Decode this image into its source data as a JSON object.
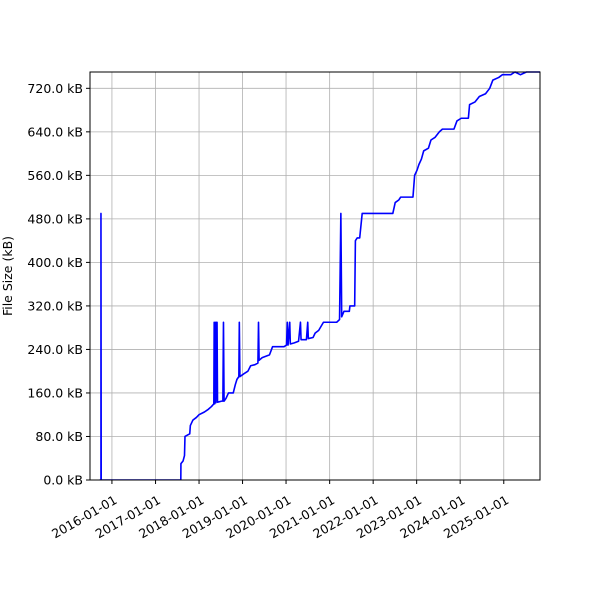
{
  "chart_data": {
    "type": "line",
    "title": "",
    "xlabel": "",
    "ylabel": "File Size (kB)",
    "grid": true,
    "legend": "none",
    "x_tick_labels": [
      "2016-01-01",
      "2017-01-01",
      "2018-01-01",
      "2019-01-01",
      "2020-01-01",
      "2021-01-01",
      "2022-01-01",
      "2023-01-01",
      "2024-01-01",
      "2025-01-01"
    ],
    "y_tick_values": [
      0,
      80,
      160,
      240,
      320,
      400,
      480,
      560,
      640,
      720
    ],
    "y_tick_labels": [
      "0.0 kB",
      "80.0 kB",
      "160.0 kB",
      "240.0 kB",
      "320.0 kB",
      "400.0 kB",
      "480.0 kB",
      "560.0 kB",
      "640.0 kB",
      "720.0 kB"
    ],
    "xlim": [
      "2015-07-01",
      "2025-11-01"
    ],
    "ylim": [
      0,
      750
    ],
    "series": [
      {
        "color": "#0000ff",
        "points": [
          [
            "2015-09-20",
            0
          ],
          [
            "2015-10-01",
            0
          ],
          [
            "2015-10-01",
            490
          ],
          [
            "2015-10-03",
            0
          ],
          [
            "2016-06-01",
            0
          ],
          [
            "2017-06-01",
            0
          ],
          [
            "2017-08-01",
            0
          ],
          [
            "2017-08-02",
            30
          ],
          [
            "2017-08-20",
            35
          ],
          [
            "2017-09-01",
            45
          ],
          [
            "2017-09-05",
            80
          ],
          [
            "2017-10-15",
            85
          ],
          [
            "2017-10-20",
            100
          ],
          [
            "2017-11-10",
            110
          ],
          [
            "2017-12-10",
            115
          ],
          [
            "2018-01-01",
            120
          ],
          [
            "2018-02-15",
            125
          ],
          [
            "2018-03-20",
            130
          ],
          [
            "2018-04-15",
            135
          ],
          [
            "2018-05-05",
            140
          ],
          [
            "2018-05-08",
            290
          ],
          [
            "2018-05-12",
            140
          ],
          [
            "2018-05-18",
            290
          ],
          [
            "2018-05-22",
            142
          ],
          [
            "2018-05-28",
            290
          ],
          [
            "2018-06-01",
            290
          ],
          [
            "2018-06-05",
            143
          ],
          [
            "2018-07-10",
            145
          ],
          [
            "2018-07-20",
            145
          ],
          [
            "2018-07-25",
            290
          ],
          [
            "2018-07-30",
            145
          ],
          [
            "2018-08-15",
            150
          ],
          [
            "2018-09-05",
            160
          ],
          [
            "2018-10-15",
            160
          ],
          [
            "2018-11-01",
            175
          ],
          [
            "2018-11-15",
            185
          ],
          [
            "2018-12-01",
            190
          ],
          [
            "2018-12-05",
            290
          ],
          [
            "2018-12-10",
            190
          ],
          [
            "2019-01-10",
            195
          ],
          [
            "2019-02-15",
            200
          ],
          [
            "2019-03-10",
            210
          ],
          [
            "2019-04-15",
            212
          ],
          [
            "2019-05-10",
            215
          ],
          [
            "2019-05-15",
            290
          ],
          [
            "2019-05-20",
            220
          ],
          [
            "2019-06-15",
            225
          ],
          [
            "2019-08-15",
            230
          ],
          [
            "2019-09-10",
            245
          ],
          [
            "2019-12-15",
            245
          ],
          [
            "2020-01-05",
            248
          ],
          [
            "2020-01-12",
            290
          ],
          [
            "2020-01-18",
            248
          ],
          [
            "2020-02-01",
            290
          ],
          [
            "2020-02-06",
            250
          ],
          [
            "2020-03-10",
            252
          ],
          [
            "2020-04-15",
            255
          ],
          [
            "2020-05-01",
            290
          ],
          [
            "2020-05-06",
            258
          ],
          [
            "2020-06-20",
            258
          ],
          [
            "2020-07-01",
            290
          ],
          [
            "2020-07-06",
            260
          ],
          [
            "2020-08-15",
            262
          ],
          [
            "2020-09-01",
            270
          ],
          [
            "2020-10-01",
            275
          ],
          [
            "2020-11-10",
            290
          ],
          [
            "2020-12-15",
            290
          ],
          [
            "2021-03-01",
            290
          ],
          [
            "2021-03-25",
            295
          ],
          [
            "2021-04-05",
            490
          ],
          [
            "2021-04-12",
            300
          ],
          [
            "2021-05-01",
            310
          ],
          [
            "2021-06-15",
            310
          ],
          [
            "2021-06-20",
            320
          ],
          [
            "2021-07-30",
            320
          ],
          [
            "2021-08-05",
            440
          ],
          [
            "2021-08-20",
            445
          ],
          [
            "2021-09-10",
            445
          ],
          [
            "2021-10-01",
            490
          ],
          [
            "2022-06-15",
            490
          ],
          [
            "2022-07-05",
            510
          ],
          [
            "2022-08-05",
            515
          ],
          [
            "2022-08-20",
            520
          ],
          [
            "2022-09-20",
            520
          ],
          [
            "2022-12-01",
            520
          ],
          [
            "2022-12-15",
            560
          ],
          [
            "2023-01-05",
            570
          ],
          [
            "2023-01-20",
            580
          ],
          [
            "2023-02-10",
            590
          ],
          [
            "2023-03-01",
            605
          ],
          [
            "2023-04-10",
            610
          ],
          [
            "2023-05-01",
            625
          ],
          [
            "2023-06-05",
            630
          ],
          [
            "2023-07-10",
            640
          ],
          [
            "2023-08-05",
            645
          ],
          [
            "2023-11-10",
            645
          ],
          [
            "2023-12-05",
            660
          ],
          [
            "2024-01-10",
            665
          ],
          [
            "2024-03-10",
            665
          ],
          [
            "2024-03-20",
            690
          ],
          [
            "2024-05-05",
            695
          ],
          [
            "2024-06-10",
            705
          ],
          [
            "2024-08-01",
            710
          ],
          [
            "2024-09-05",
            720
          ],
          [
            "2024-10-01",
            735
          ],
          [
            "2024-11-20",
            740
          ],
          [
            "2024-12-20",
            745
          ],
          [
            "2025-03-01",
            745
          ],
          [
            "2025-04-05",
            750
          ],
          [
            "2025-05-20",
            745
          ],
          [
            "2025-07-10",
            750
          ],
          [
            "2025-08-05",
            750
          ],
          [
            "2025-11-01",
            750
          ]
        ]
      }
    ]
  }
}
